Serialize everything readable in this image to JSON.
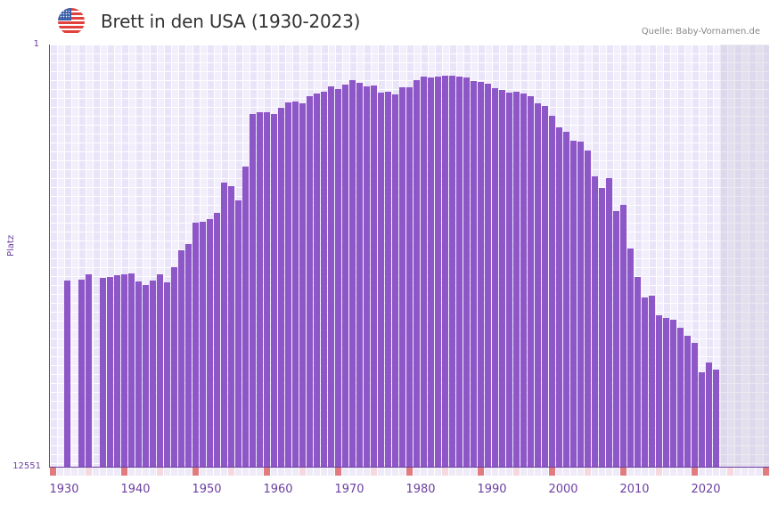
{
  "header": {
    "title": "Brett in den USA (1930-2023)",
    "source": "Quelle: Baby-Vornamen.de",
    "flag_icon": "us-flag-icon"
  },
  "colors": {
    "bar": "#8e57c8",
    "axis": "#6b3fa0",
    "plot_bg": "#f3eefb",
    "marker_major": "#e07b80",
    "marker_minor": "#f5d8e0",
    "future_shade": "#e3dfec"
  },
  "chart_data": {
    "type": "bar",
    "title": "Brett in den USA (1930-2023)",
    "xlabel": "",
    "ylabel": "Platz",
    "y_inverted": true,
    "ylim": [
      1,
      12551
    ],
    "yticks": [
      "1",
      "12551"
    ],
    "xlim": [
      1929,
      2029
    ],
    "xticks": [
      "1930",
      "1940",
      "1950",
      "1960",
      "1970",
      "1980",
      "1990",
      "2000",
      "2010",
      "2020"
    ],
    "grid": true,
    "legend": null,
    "future_from_year": 2023,
    "categories": [
      1931,
      1933,
      1934,
      1936,
      1937,
      1938,
      1939,
      1940,
      1941,
      1942,
      1943,
      1944,
      1945,
      1946,
      1947,
      1948,
      1949,
      1950,
      1951,
      1952,
      1953,
      1954,
      1955,
      1956,
      1957,
      1958,
      1959,
      1960,
      1961,
      1962,
      1963,
      1964,
      1965,
      1966,
      1967,
      1968,
      1969,
      1970,
      1971,
      1972,
      1973,
      1974,
      1975,
      1976,
      1977,
      1978,
      1979,
      1980,
      1981,
      1982,
      1983,
      1984,
      1985,
      1986,
      1987,
      1988,
      1989,
      1990,
      1991,
      1992,
      1993,
      1994,
      1995,
      1996,
      1997,
      1998,
      1999,
      2000,
      2001,
      2002,
      2003,
      2004,
      2005,
      2006,
      2007,
      2008,
      2009,
      2010,
      2011,
      2012,
      2013,
      2014,
      2015,
      2016,
      2017,
      2018,
      2019,
      2020,
      2021,
      2022
    ],
    "values": [
      7019,
      6993,
      6834,
      6940,
      6914,
      6861,
      6834,
      6808,
      7046,
      7152,
      7019,
      6834,
      7072,
      6623,
      6120,
      5935,
      5300,
      5274,
      5194,
      5009,
      4109,
      4215,
      4639,
      3632,
      2070,
      2017,
      2017,
      2070,
      1885,
      1726,
      1700,
      1753,
      1541,
      1462,
      1409,
      1250,
      1329,
      1197,
      1065,
      1144,
      1250,
      1223,
      1435,
      1409,
      1488,
      1276,
      1276,
      1065,
      959,
      985,
      959,
      932,
      932,
      959,
      985,
      1091,
      1118,
      1170,
      1303,
      1356,
      1435,
      1409,
      1462,
      1541,
      1753,
      1832,
      2123,
      2467,
      2600,
      2864,
      2891,
      3155,
      3923,
      4268,
      3976,
      4956,
      4771,
      6067,
      6914,
      7522,
      7469,
      8052,
      8131,
      8184,
      8422,
      8660,
      8872,
      9746,
      9455,
      9667
    ]
  }
}
